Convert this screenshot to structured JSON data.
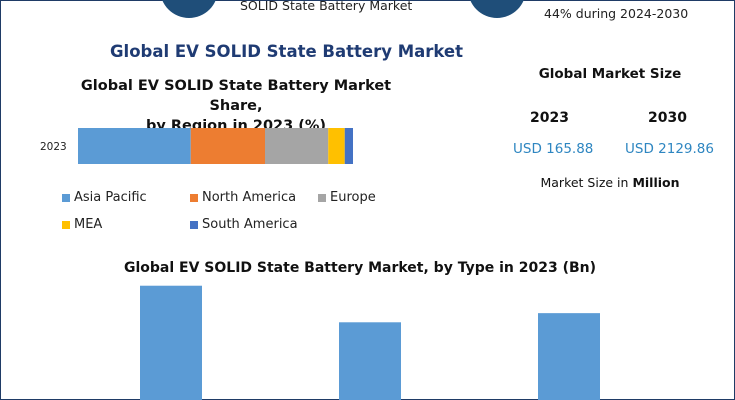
{
  "header": {
    "left_text": "SOLID State Battery Market",
    "right_text": "44% during 2024-2030"
  },
  "page_title": "Global EV SOLID State Battery Market",
  "market_size": {
    "title": "Global Market Size",
    "years": [
      {
        "year": "2023",
        "value": "USD 165.88"
      },
      {
        "year": "2030",
        "value": "USD 2129.86"
      }
    ],
    "note_prefix": "Market Size in ",
    "note_bold": "Million"
  },
  "colors": {
    "asia_pacific": "#5b9bd5",
    "north_america": "#ed7d31",
    "europe": "#a5a5a5",
    "mea": "#ffc000",
    "south_america": "#4472c4",
    "bar": "#5b9bd5",
    "title_blue": "#1f3b73",
    "accent_value": "#2e86c1"
  },
  "chart_data": [
    {
      "type": "bar",
      "orientation": "horizontal-stacked",
      "title": "Global EV SOLID State Battery Market Share, by Region in 2023 (%)",
      "title_lines": [
        "Global EV SOLID State Battery Market Share,",
        "by Region in 2023 (%)"
      ],
      "categories": [
        "2023"
      ],
      "series": [
        {
          "name": "Asia Pacific",
          "values": [
            41
          ]
        },
        {
          "name": "North America",
          "values": [
            27
          ]
        },
        {
          "name": "Europe",
          "values": [
            23
          ]
        },
        {
          "name": "MEA",
          "values": [
            6
          ]
        },
        {
          "name": "South America",
          "values": [
            3
          ]
        }
      ],
      "xlim": [
        0,
        100
      ],
      "legend": "bottom"
    },
    {
      "type": "bar",
      "title": "Global EV SOLID State Battery Market, by Type in 2023 (Bn)",
      "categories": [
        "",
        "",
        ""
      ],
      "values": [
        100,
        68,
        76
      ],
      "ylim": [
        0,
        105
      ]
    }
  ]
}
